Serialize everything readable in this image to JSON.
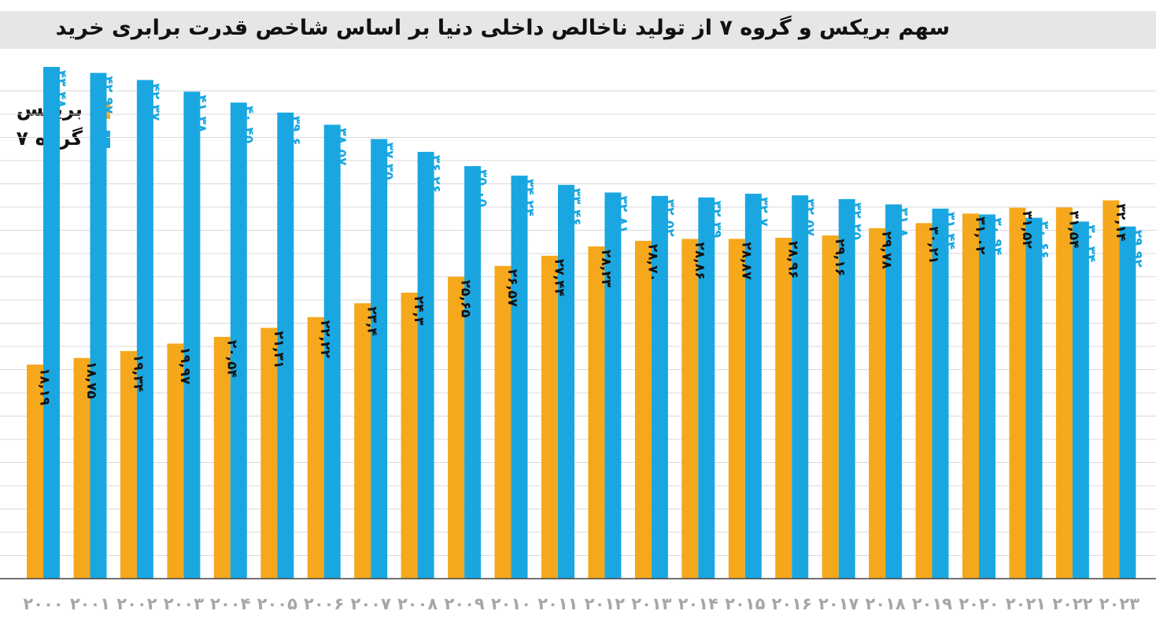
{
  "chart_data": {
    "type": "bar",
    "title": "سهم بریکس و گروه ۷ از تولید ناخالص داخلی دنیا بر اساس شاخص قدرت برابری خرید",
    "categories": [
      "۲۰۰۰",
      "۲۰۰۱",
      "۲۰۰۲",
      "۲۰۰۳",
      "۲۰۰۴",
      "۲۰۰۵",
      "۲۰۰۶",
      "۲۰۰۷",
      "۲۰۰۸",
      "۲۰۰۹",
      "۲۰۱۰",
      "۲۰۱۱",
      "۲۰۱۲",
      "۲۰۱۳",
      "۲۰۱۴",
      "۲۰۱۵",
      "۲۰۱۶",
      "۲۰۱۷",
      "۲۰۱۸",
      "۲۰۱۹",
      "۲۰۲۰",
      "۲۰۲۱",
      "۲۰۲۲",
      "۲۰۲۳"
    ],
    "series": [
      {
        "name": "بریکس",
        "color": "#f5a81c",
        "values": [
          18.19,
          18.75,
          19.34,
          19.97,
          20.54,
          21.31,
          22.22,
          23.4,
          24.3,
          25.65,
          26.57,
          27.44,
          28.23,
          28.7,
          28.86,
          28.87,
          28.96,
          29.16,
          29.78,
          30.21,
          31.02,
          31.52,
          31.54,
          32.14
        ],
        "labels": [
          "۱۸,۱۹",
          "۱۸,۷۵",
          "۱۹,۳۴",
          "۱۹,۹۷",
          "۲۰,۵۴",
          "۲۱,۳۱",
          "۲۲,۲۲",
          "۲۳,۴",
          "۲۴,۳",
          "۲۵,۶۵",
          "۲۶,۵۷",
          "۲۷,۴۴",
          "۲۸,۲۳",
          "۲۸,۷۰",
          "۲۸,۸۶",
          "۲۸,۸۷",
          "۲۸,۹۶",
          "۲۹,۱۶",
          "۲۹,۷۸",
          "۳۰,۲۱",
          "۳۱,۰۲",
          "۳۱,۵۲",
          "۳۱,۵۴",
          "۳۲,۱۴"
        ]
      },
      {
        "name": "گروه ۷",
        "color": "#1aa7e1",
        "values": [
          43.48,
          42.97,
          42.37,
          41.38,
          40.45,
          39.6,
          38.57,
          37.35,
          36.26,
          35.05,
          34.24,
          33.46,
          32.81,
          32.52,
          32.39,
          32.7,
          32.57,
          32.25,
          31.8,
          31.44,
          30.94,
          30.66,
          30.34,
          29.92
        ],
        "labels": [
          "۴۳,۴۸",
          "۴۲,۹۷",
          "۴۲,۳۷",
          "۴۱,۳۸",
          "۴۰,۴۵",
          "۳۹,۶",
          "۳۸,۵۷",
          "۳۷,۳۵",
          "۳۶,۲۶",
          "۳۵,۰۵",
          "۳۴,۲۴",
          "۳۳,۴۶",
          "۳۲,۸۱",
          "۳۲,۵۲",
          "۳۲,۳۹",
          "۳۲,۷",
          "۳۲,۵۷",
          "۳۲,۲۵",
          "۳۱,۸",
          "۳۱,۴۴",
          "۳۰,۹۴",
          "۳۰,۶۶",
          "۳۰,۳۴",
          "۲۹,۹۲"
        ]
      }
    ],
    "legend_position": "top-left",
    "grid": true,
    "xlabel": "",
    "ylabel": "",
    "axis_color": "#444444",
    "grid_color": "#d9d9d9",
    "tick_color": "#a6a6a6"
  }
}
